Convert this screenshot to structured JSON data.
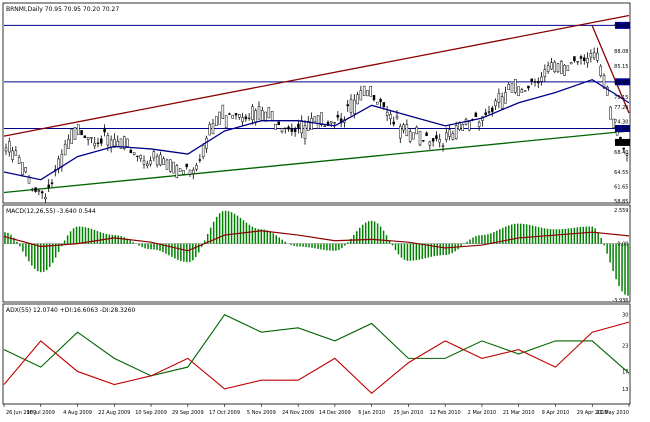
{
  "window": {
    "title": "BRNMI,Daily  70.95 70.95 70.20 70.27"
  },
  "price_pane": {
    "hlines": [
      93.08,
      82.08,
      72.98
    ],
    "price_labels": [
      "93.08",
      "88.08",
      "85.15",
      "82.08",
      "79.15",
      "77.20",
      "74.30",
      "72.98",
      "70.27",
      "68.40",
      "64.55",
      "61.65",
      "58.85"
    ],
    "last_price": "70.27"
  },
  "macd_pane": {
    "title": "MACD(12,26,55) -3.640 0.544",
    "tick_labels": [
      "2.559",
      "0.00",
      "-3.936"
    ]
  },
  "adx_pane": {
    "title": "ADX(55) 12.0740 +DI:16.6063 -DI:28.3260",
    "tick_labels": [
      "30",
      "23",
      "17",
      "13"
    ]
  },
  "date_labels": [
    "26 Jun 2009",
    "16 Jul 2009",
    "4 Aug 2009",
    "22 Aug 2009",
    "10 Sep 2009",
    "29 Sep 2009",
    "17 Oct 2009",
    "5 Nov 2009",
    "24 Nov 2009",
    "14 Dec 2009",
    "6 Jan 2010",
    "25 Jan 2010",
    "12 Feb 2010",
    "2 Mar 2010",
    "21 Mar 2010",
    "9 Apr 2010",
    "29 Apr 2010",
    "21 May 2010"
  ],
  "colors": {
    "candle": "#000000",
    "ma_line": "#00008b",
    "upper_channel": "#8b0000",
    "lower_channel": "#006400",
    "hline": "#00008b",
    "macd_hist": "#008000",
    "macd_signal": "#8b0000",
    "plus_di": "#006400",
    "minus_di": "#c00000"
  },
  "chart_data": [
    {
      "type": "candlestick",
      "title": "BRNMI,Daily  70.95 70.95 70.20 70.27",
      "ylim": [
        58.85,
        95.3
      ],
      "x_categories": [
        "26 Jun 2009",
        "16 Jul 2009",
        "4 Aug 2009",
        "22 Aug 2009",
        "10 Sep 2009",
        "29 Sep 2009",
        "17 Oct 2009",
        "5 Nov 2009",
        "24 Nov 2009",
        "14 Dec 2009",
        "6 Jan 2010",
        "25 Jan 2010",
        "12 Feb 2010",
        "2 Mar 2010",
        "21 Mar 2010",
        "9 Apr 2010",
        "29 Apr 2010",
        "21 May 2010"
      ],
      "series": [
        {
          "name": "close",
          "values": [
            70.0,
            61.5,
            73.5,
            71.0,
            68.0,
            66.5,
            77.5,
            77.0,
            74.0,
            76.0,
            81.0,
            73.0,
            72.0,
            76.5,
            82.0,
            85.5,
            88.5,
            70.27
          ]
        },
        {
          "name": "ma",
          "values": [
            64.5,
            63.0,
            67.5,
            69.5,
            69.0,
            68.0,
            72.5,
            74.5,
            74.5,
            73.5,
            77.5,
            75.5,
            73.5,
            75.0,
            78.0,
            80.0,
            82.5,
            78.0
          ]
        }
      ],
      "trendlines": [
        {
          "from": [
            0,
            71.5
          ],
          "to": [
            17,
            95.0
          ]
        },
        {
          "from": [
            0,
            60.5
          ],
          "to": [
            17,
            72.5
          ]
        },
        {
          "from": [
            16,
            93.0
          ],
          "to": [
            17,
            76.0
          ]
        }
      ],
      "hlines": [
        93.08,
        82.08,
        72.98
      ]
    },
    {
      "type": "bar",
      "title": "MACD(12,26,55) -3.640 0.544",
      "ylim": [
        -3.936,
        2.559
      ],
      "x_categories": [
        "26 Jun 2009",
        "16 Jul 2009",
        "4 Aug 2009",
        "22 Aug 2009",
        "10 Sep 2009",
        "29 Sep 2009",
        "17 Oct 2009",
        "5 Nov 2009",
        "24 Nov 2009",
        "14 Dec 2009",
        "6 Jan 2010",
        "25 Jan 2010",
        "12 Feb 2010",
        "2 Mar 2010",
        "21 Mar 2010",
        "9 Apr 2010",
        "29 Apr 2010",
        "21 May 2010"
      ],
      "series": [
        {
          "name": "histogram",
          "values": [
            0.8,
            -2.0,
            1.2,
            0.6,
            -0.4,
            -1.3,
            2.3,
            1.0,
            -0.2,
            -0.5,
            1.6,
            -1.2,
            -0.8,
            0.6,
            1.4,
            1.0,
            1.2,
            -3.64
          ]
        },
        {
          "name": "signal",
          "values": [
            0.5,
            -0.2,
            0.0,
            0.4,
            0.1,
            -0.5,
            0.6,
            0.9,
            0.6,
            0.2,
            0.3,
            0.1,
            -0.3,
            -0.1,
            0.4,
            0.6,
            0.8,
            0.544
          ]
        }
      ]
    },
    {
      "type": "line",
      "title": "ADX(55) 12.0740 +DI:16.6063 -DI:28.3260",
      "ylim": [
        10,
        32
      ],
      "x_categories": [
        "26 Jun 2009",
        "16 Jul 2009",
        "4 Aug 2009",
        "22 Aug 2009",
        "10 Sep 2009",
        "29 Sep 2009",
        "17 Oct 2009",
        "5 Nov 2009",
        "24 Nov 2009",
        "14 Dec 2009",
        "6 Jan 2010",
        "25 Jan 2010",
        "12 Feb 2010",
        "2 Mar 2010",
        "21 Mar 2010",
        "9 Apr 2010",
        "29 Apr 2010",
        "21 May 2010"
      ],
      "series": [
        {
          "name": "+DI",
          "values": [
            22,
            18,
            26,
            20,
            16,
            18,
            30,
            26,
            27,
            24,
            28,
            20,
            20,
            24,
            21,
            24,
            24,
            16.6
          ]
        },
        {
          "name": "-DI",
          "values": [
            14,
            24,
            17,
            14,
            16,
            20,
            13,
            15,
            15,
            20,
            12,
            19,
            24,
            20,
            22,
            18,
            26,
            28.3
          ]
        }
      ]
    }
  ]
}
